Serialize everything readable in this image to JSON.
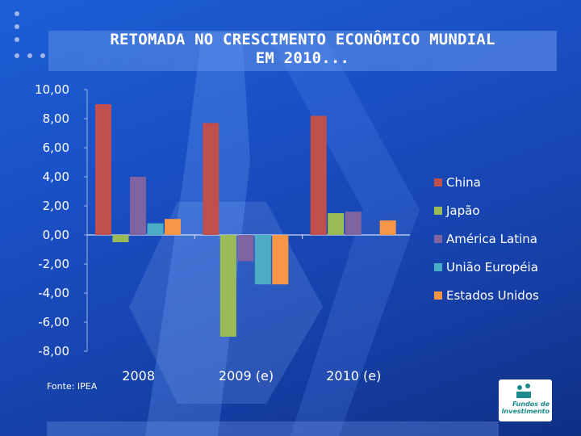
{
  "slide": {
    "title": "RETOMADA NO CRESCIMENTO ECONÔMICO MUNDIAL\nEM 2010...",
    "source": "Fonte: IPEA",
    "logo_text": "Fundos de\nInvestimento"
  },
  "chart_data": {
    "type": "bar",
    "categories": [
      "2008",
      "2009 (e)",
      "2010 (e)"
    ],
    "series": [
      {
        "name": "China",
        "color": "#c0504d",
        "values": [
          9.0,
          7.7,
          8.2
        ]
      },
      {
        "name": "Japão",
        "color": "#9bbb59",
        "values": [
          -0.5,
          -7.0,
          1.5
        ]
      },
      {
        "name": "América Latina",
        "color": "#8064a2",
        "values": [
          4.0,
          -1.8,
          1.6
        ]
      },
      {
        "name": "União Européia",
        "color": "#4bacc6",
        "values": [
          0.8,
          -3.4,
          null
        ]
      },
      {
        "name": "Estados Unidos",
        "color": "#f79646",
        "values": [
          1.1,
          -3.4,
          1.0
        ]
      }
    ],
    "yticks": [
      "10,00",
      "8,00",
      "6,00",
      "4,00",
      "2,00",
      "0,00",
      "-2,00",
      "-4,00",
      "-6,00",
      "-8,00"
    ],
    "ylim": [
      -8,
      10
    ],
    "legend_position": "right",
    "grid": false
  }
}
